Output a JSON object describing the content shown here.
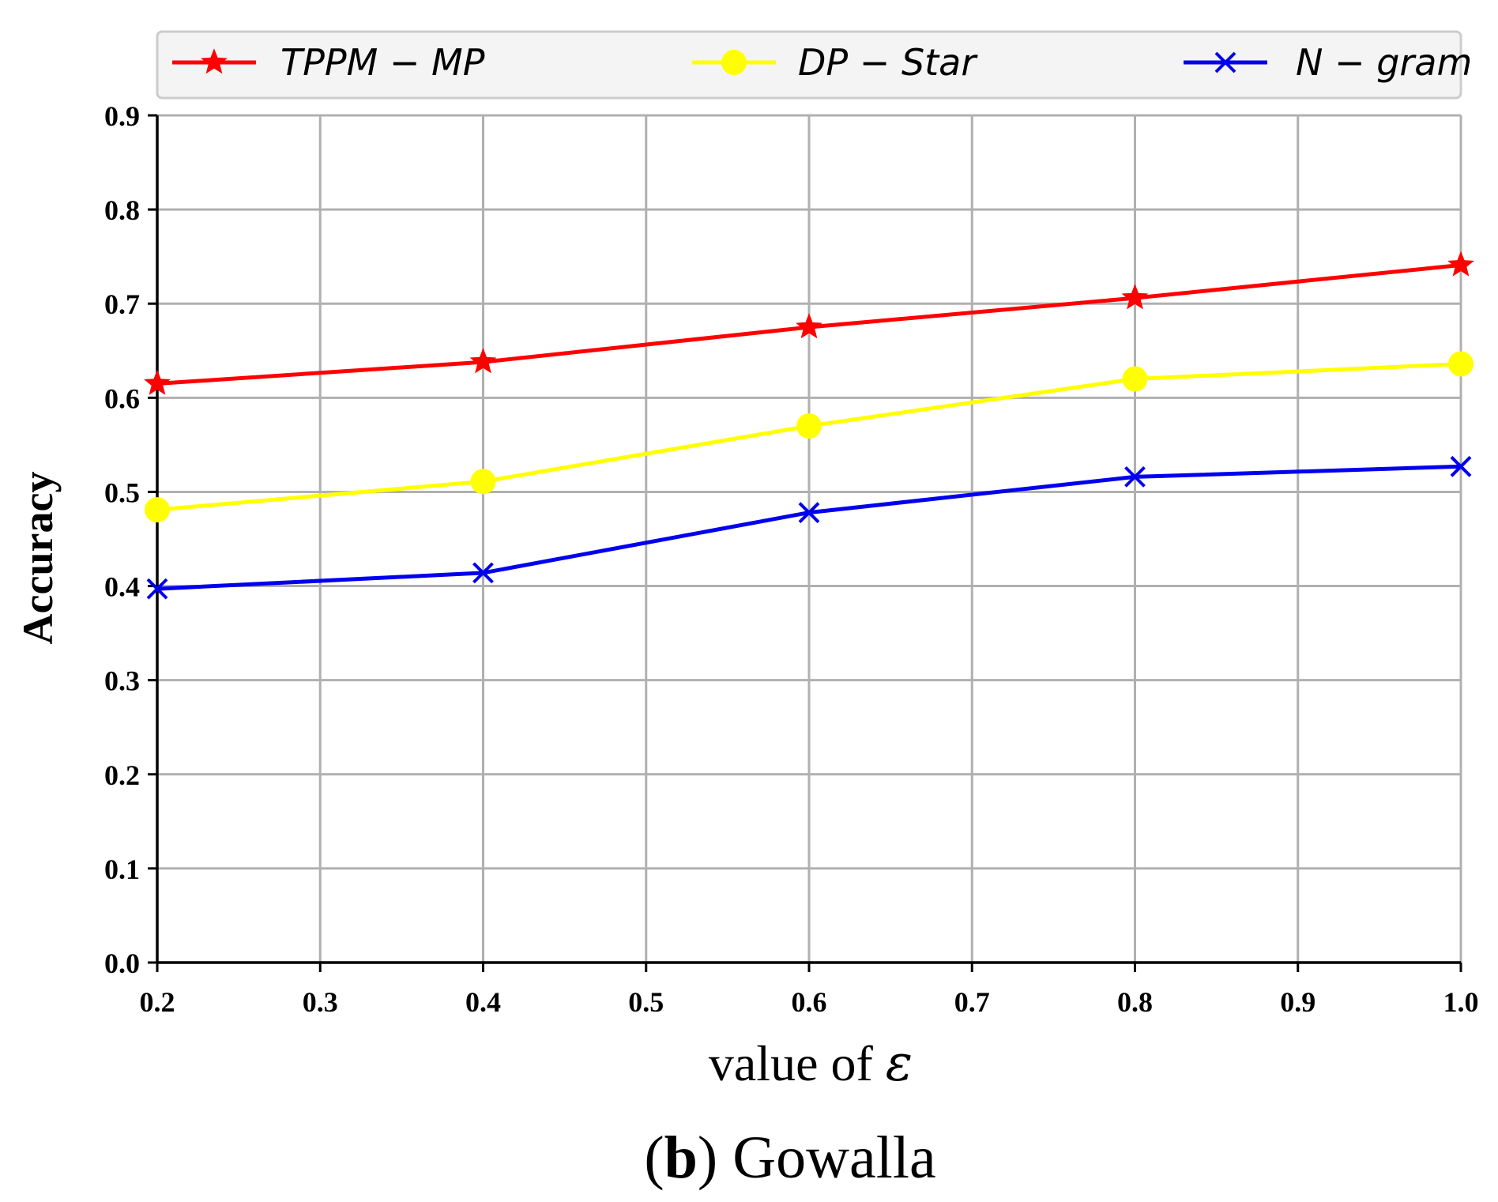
{
  "chart_data": {
    "type": "line",
    "x": [
      0.2,
      0.4,
      0.6,
      0.8,
      1.0
    ],
    "series": [
      {
        "name": "TPPM − MP",
        "values": [
          0.615,
          0.638,
          0.675,
          0.706,
          0.741
        ],
        "color": "#ff0000",
        "marker": "star"
      },
      {
        "name": "DP − Star",
        "values": [
          0.481,
          0.511,
          0.57,
          0.62,
          0.636
        ],
        "color": "#ffff00",
        "marker": "circle"
      },
      {
        "name": "N − gram",
        "values": [
          0.397,
          0.414,
          0.478,
          0.516,
          0.527
        ],
        "color": "#0000ee",
        "marker": "x"
      }
    ],
    "xlim": [
      0.2,
      1.0
    ],
    "ylim": [
      0.0,
      0.9
    ],
    "xticks": [
      "0.2",
      "0.3",
      "0.4",
      "0.5",
      "0.6",
      "0.7",
      "0.8",
      "0.9",
      "1.0"
    ],
    "yticks": [
      "0.0",
      "0.1",
      "0.2",
      "0.3",
      "0.4",
      "0.5",
      "0.6",
      "0.7",
      "0.8",
      "0.9"
    ],
    "xlabel_prefix": "value of ",
    "xlabel_symbol": "ε",
    "ylabel": "Accuracy",
    "grid": true,
    "legend_position": "top"
  },
  "caption": {
    "open": "(",
    "letter": "b",
    "close": ")",
    "text": " Gowalla"
  }
}
